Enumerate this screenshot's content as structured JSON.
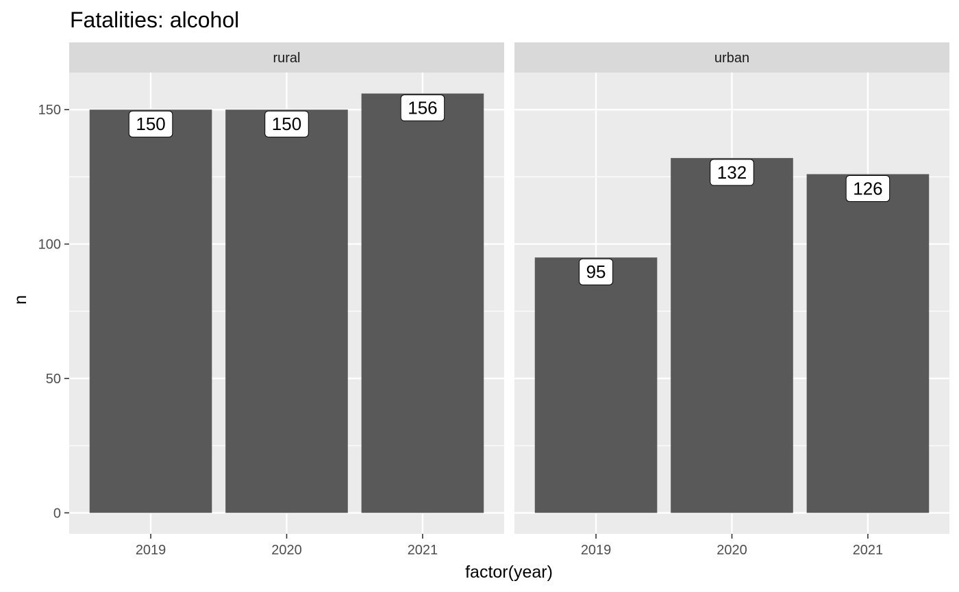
{
  "chart_data": {
    "type": "bar",
    "title": "Fatalities: alcohol",
    "xlabel": "factor(year)",
    "ylabel": "n",
    "categories": [
      "2019",
      "2020",
      "2021"
    ],
    "yticks": [
      0,
      50,
      100,
      150
    ],
    "ylim": [
      -7.8,
      163.8
    ],
    "grid": true,
    "panels": [
      {
        "name": "rural",
        "values": [
          150,
          150,
          156
        ]
      },
      {
        "name": "urban",
        "values": [
          95,
          132,
          126
        ]
      }
    ],
    "colors": {
      "bar": "#595959",
      "panel_bg": "#ebebeb",
      "strip_bg": "#d9d9d9",
      "grid": "#ffffff",
      "label_bg": "#ffffff"
    }
  }
}
